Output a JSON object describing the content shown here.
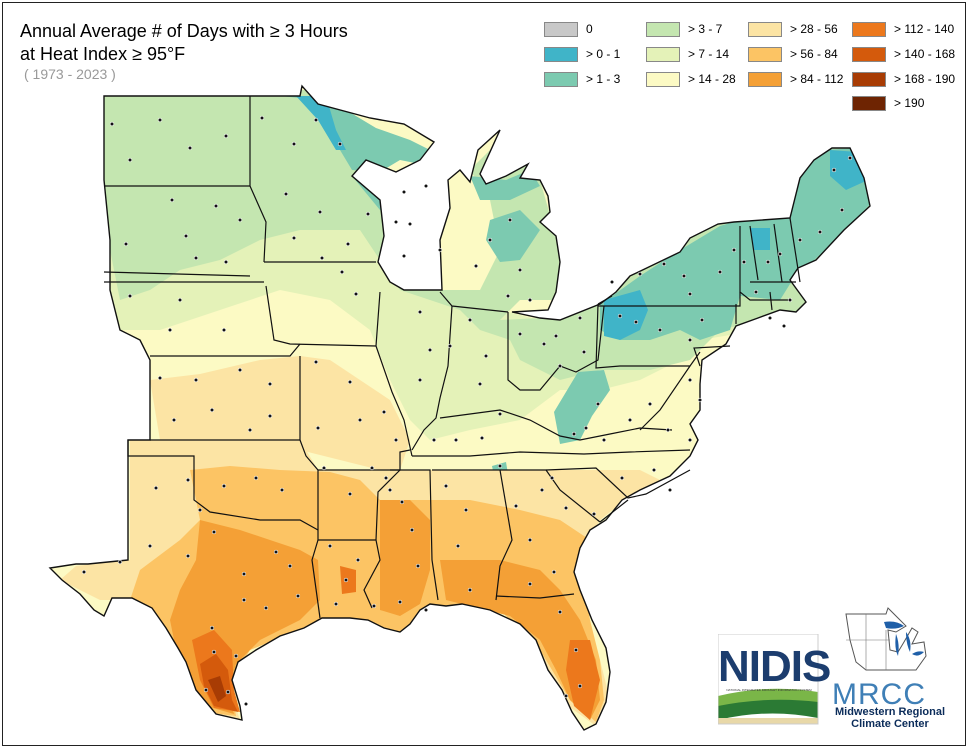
{
  "title_line1": "Annual Average # of Days with ≥ 3 Hours",
  "title_line2": "at Heat Index ≥ 95°F",
  "period": "( 1973 - 2023 )",
  "legend": [
    {
      "label": "0",
      "color": "#c8c8c8"
    },
    {
      "label": "> 0 - 1",
      "color": "#40b4c8"
    },
    {
      "label": "> 1 - 3",
      "color": "#7ccab0"
    },
    {
      "label": "> 3 - 7",
      "color": "#c4e6b0"
    },
    {
      "label": "> 7 - 14",
      "color": "#e4f2b8"
    },
    {
      "label": "> 14 - 28",
      "color": "#fcfac4"
    },
    {
      "label": "> 28 - 56",
      "color": "#fce4a4"
    },
    {
      "label": "> 56 - 84",
      "color": "#fcc464"
    },
    {
      "label": "> 84 - 112",
      "color": "#f4a036"
    },
    {
      "label": "> 112 - 140",
      "color": "#ec781c"
    },
    {
      "label": "> 140 - 168",
      "color": "#d45a0c"
    },
    {
      "label": "> 168 - 190",
      "color": "#a83c04"
    },
    {
      "label": "> 190",
      "color": "#6e2402"
    }
  ],
  "logos": {
    "nidis_label": "NIDIS",
    "nidis_subtitle": "NATIONAL INTEGRATED DROUGHT INFORMATION SYSTEM",
    "mrcc_abbr": "MRCC",
    "mrcc_name_line1": "Midwestern Regional",
    "mrcc_name_line2": "Climate Center"
  }
}
